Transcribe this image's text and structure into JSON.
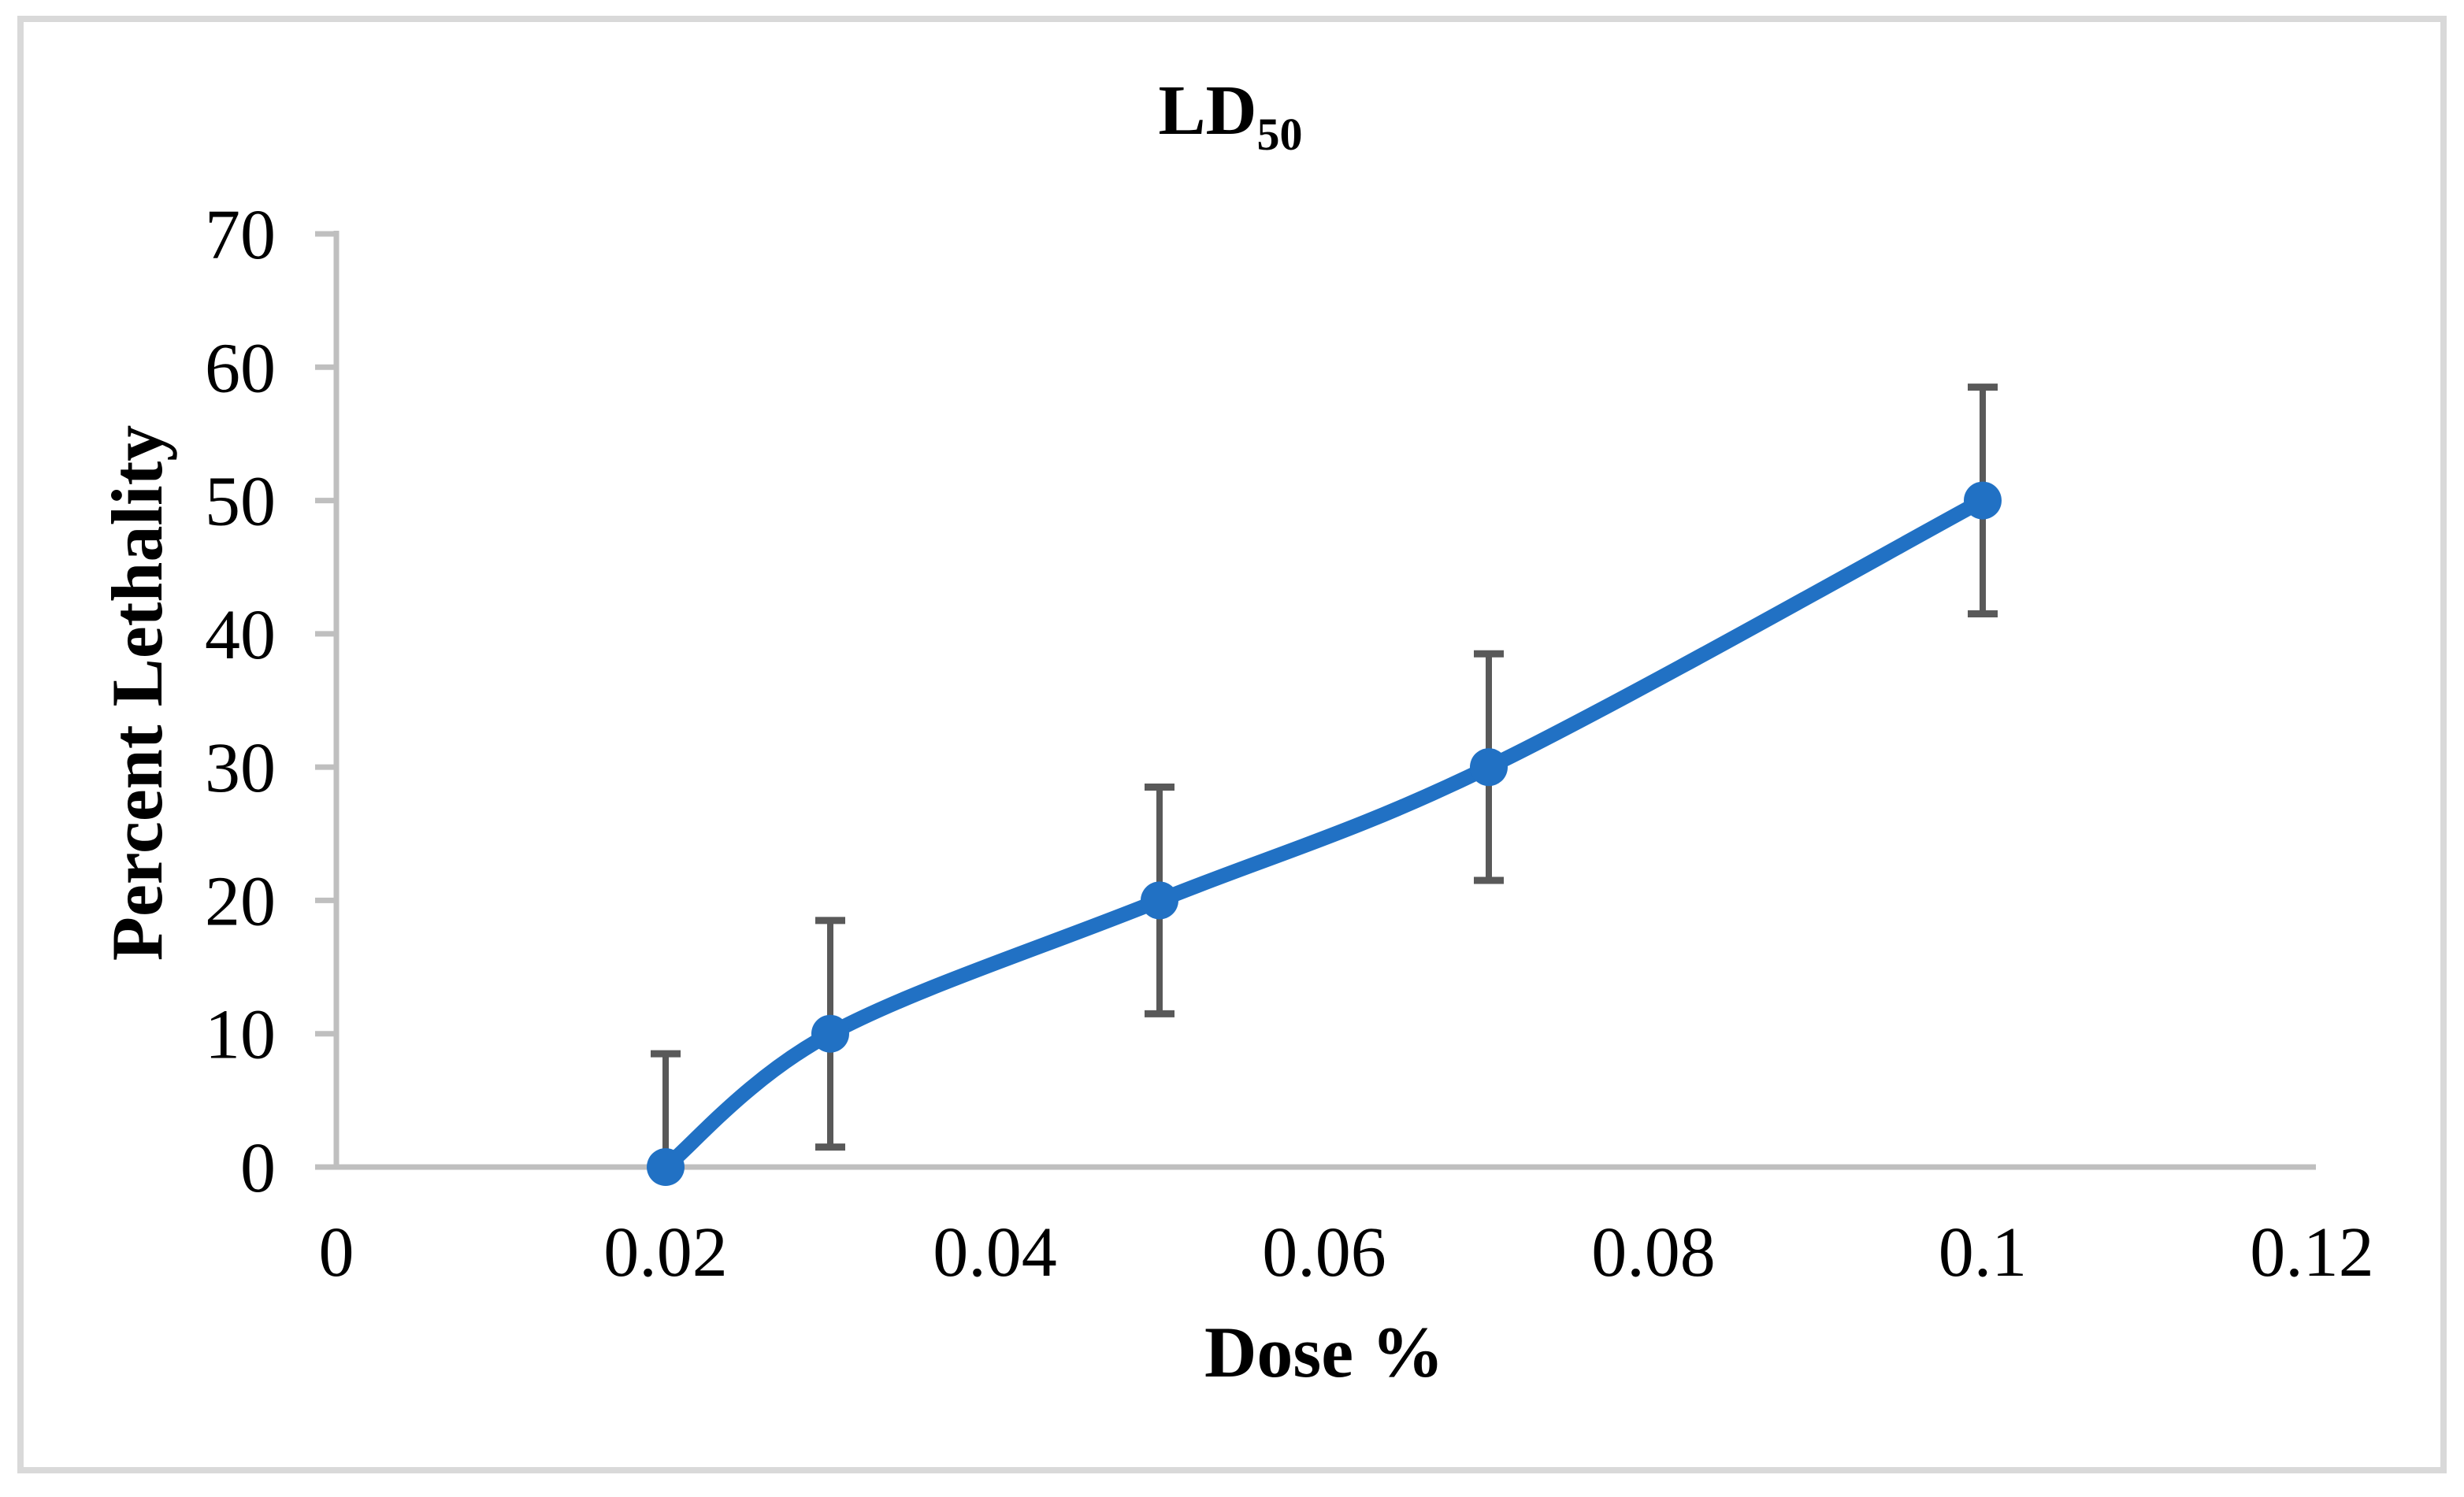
{
  "figure": {
    "background": "#FFFFFF",
    "frame_border_color": "#D9D9D9"
  },
  "chart_data": {
    "type": "line",
    "title_main": "LD",
    "title_subscript": "50",
    "xlabel": "Dose %",
    "ylabel": "Percent Lethality",
    "x": [
      0.02,
      0.03,
      0.05,
      0.07,
      0.1
    ],
    "y": [
      0,
      10,
      20,
      30,
      50
    ],
    "y_error": [
      8.5,
      8.5,
      8.5,
      8.5,
      8.5
    ],
    "xlim": [
      0,
      0.12
    ],
    "ylim": [
      0,
      70
    ],
    "x_ticks": [
      0,
      0.02,
      0.04,
      0.06,
      0.08,
      0.1,
      0.12
    ],
    "x_tick_labels": [
      "0",
      "0.02",
      "0.04",
      "0.06",
      "0.08",
      "0.1",
      "0.12"
    ],
    "y_ticks": [
      0,
      10,
      20,
      30,
      40,
      50,
      60,
      70
    ],
    "y_tick_labels": [
      "0",
      "10",
      "20",
      "30",
      "40",
      "50",
      "60",
      "70"
    ],
    "grid": false,
    "legend": null,
    "smooth_line": true,
    "marker_shape": "circle",
    "error_bars_clipped_at_axis": true,
    "colors": {
      "line": "#2171C4",
      "marker": "#2171C4",
      "error_bar": "#595959",
      "axis": "#BFBFBF",
      "text": "#000000",
      "frame": "#D9D9D9"
    }
  }
}
